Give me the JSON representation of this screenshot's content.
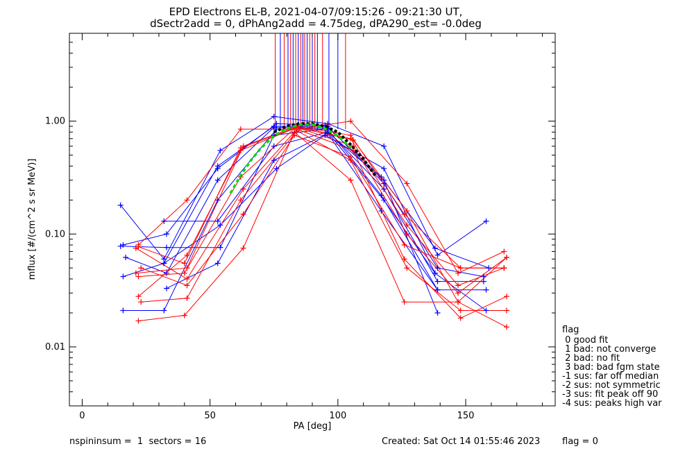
{
  "title_lines": [
    "EPD Electrons EL-B, 2021-04-07/09:15:26 - 09:21:30 UT,",
    "dSectr2add = 0, dPhAng2add = 4.75deg, dPA290_est=  -0.0deg"
  ],
  "chart_data": {
    "type": "line",
    "xlabel": "PA [deg]",
    "ylabel": "mflux [#/(cm^2 s sr MeV)]",
    "xlim": [
      -5,
      185
    ],
    "ylim": [
      0.003,
      6.0
    ],
    "yscale": "log",
    "xticks": [
      0,
      50,
      100,
      150
    ],
    "xtick_labels": [
      "0",
      "50",
      "100",
      "150"
    ],
    "yticks": [
      0.01,
      0.1,
      1.0
    ],
    "ytick_labels": [
      "0.01",
      "0.10",
      "1.00"
    ],
    "grid": false,
    "colors": {
      "red": "#ff0000",
      "blue": "#0000ff",
      "fit_black": "#000000",
      "fit_green": "#00dd00"
    },
    "peak_marker_pa": [
      {
        "pa": 75.5,
        "color": "red"
      },
      {
        "pa": 77.5,
        "color": "blue"
      },
      {
        "pa": 79.0,
        "color": "red"
      },
      {
        "pa": 80.5,
        "color": "blue"
      },
      {
        "pa": 81.5,
        "color": "red"
      },
      {
        "pa": 82.5,
        "color": "blue"
      },
      {
        "pa": 83.5,
        "color": "red"
      },
      {
        "pa": 84.5,
        "color": "blue"
      },
      {
        "pa": 85.5,
        "color": "red"
      },
      {
        "pa": 86.3,
        "color": "blue"
      },
      {
        "pa": 87.0,
        "color": "red"
      },
      {
        "pa": 88.0,
        "color": "blue"
      },
      {
        "pa": 89.0,
        "color": "red"
      },
      {
        "pa": 90.0,
        "color": "blue"
      },
      {
        "pa": 91.0,
        "color": "red"
      },
      {
        "pa": 92.0,
        "color": "blue"
      },
      {
        "pa": 94.0,
        "color": "red"
      },
      {
        "pa": 96.5,
        "color": "blue"
      },
      {
        "pa": 100.0,
        "color": "blue"
      },
      {
        "pa": 103.0,
        "color": "red"
      }
    ],
    "fit_green": {
      "x": [
        58,
        62,
        66,
        70,
        75,
        80,
        85,
        90,
        95,
        100,
        105
      ],
      "y": [
        0.23,
        0.33,
        0.45,
        0.58,
        0.74,
        0.86,
        0.93,
        0.93,
        0.86,
        0.74,
        0.58
      ]
    },
    "fit_black": {
      "x": [
        75,
        80,
        85,
        90,
        95,
        100,
        105,
        110,
        115
      ],
      "y": [
        0.8,
        0.9,
        0.95,
        0.95,
        0.9,
        0.8,
        0.62,
        0.46,
        0.32
      ]
    },
    "series": [
      {
        "color": "blue",
        "x": [
          15,
          32,
          54,
          75,
          96,
          118,
          139,
          158
        ],
        "y": [
          0.18,
          0.06,
          0.55,
          1.1,
          0.95,
          0.6,
          0.065,
          0.13
        ]
      },
      {
        "color": "blue",
        "x": [
          16,
          33,
          53,
          76,
          95,
          117,
          138,
          159
        ],
        "y": [
          0.08,
          0.1,
          0.38,
          0.95,
          0.92,
          0.32,
          0.075,
          0.05
        ]
      },
      {
        "color": "blue",
        "x": [
          16,
          32,
          53,
          75,
          96,
          118,
          139,
          157
        ],
        "y": [
          0.042,
          0.055,
          0.4,
          0.9,
          0.9,
          0.28,
          0.05,
          0.042
        ]
      },
      {
        "color": "blue",
        "x": [
          17,
          33,
          53,
          75,
          95,
          118,
          139,
          157
        ],
        "y": [
          0.062,
          0.045,
          0.3,
          0.88,
          0.87,
          0.25,
          0.038,
          0.038
        ]
      },
      {
        "color": "blue",
        "x": [
          16,
          32,
          53,
          76,
          96,
          117,
          139,
          158
        ],
        "y": [
          0.021,
          0.021,
          0.2,
          0.85,
          0.85,
          0.22,
          0.032,
          0.032
        ]
      },
      {
        "color": "blue",
        "x": [
          15,
          33,
          54,
          75,
          95,
          118,
          138,
          158
        ],
        "y": [
          0.078,
          0.076,
          0.076,
          0.75,
          0.85,
          0.2,
          0.045,
          0.021
        ]
      },
      {
        "color": "blue",
        "x": [
          32,
          53,
          75,
          96,
          118,
          139
        ],
        "y": [
          0.13,
          0.13,
          0.6,
          0.8,
          0.3,
          0.02
        ]
      },
      {
        "color": "blue",
        "x": [
          33,
          53,
          75,
          96,
          117,
          139
        ],
        "y": [
          0.033,
          0.055,
          0.45,
          0.78,
          0.16,
          0.032
        ]
      },
      {
        "color": "blue",
        "x": [
          32,
          54,
          76,
          95,
          118,
          138
        ],
        "y": [
          0.055,
          0.12,
          0.38,
          0.75,
          0.38,
          0.045
        ]
      },
      {
        "color": "red",
        "x": [
          22,
          41,
          62,
          84,
          105,
          127,
          147,
          165
        ],
        "y": [
          0.08,
          0.2,
          0.85,
          0.85,
          1.0,
          0.28,
          0.045,
          0.07
        ]
      },
      {
        "color": "red",
        "x": [
          21,
          41,
          63,
          84,
          105,
          126,
          148,
          165
        ],
        "y": [
          0.045,
          0.05,
          0.6,
          0.9,
          0.75,
          0.15,
          0.05,
          0.05
        ]
      },
      {
        "color": "red",
        "x": [
          22,
          41,
          62,
          84,
          106,
          127,
          147,
          166
        ],
        "y": [
          0.028,
          0.065,
          0.55,
          0.88,
          0.6,
          0.1,
          0.03,
          0.062
        ]
      },
      {
        "color": "red",
        "x": [
          22,
          40,
          63,
          83,
          105,
          126,
          147,
          166
        ],
        "y": [
          0.017,
          0.019,
          0.075,
          0.8,
          0.3,
          0.025,
          0.025,
          0.015
        ]
      },
      {
        "color": "red",
        "x": [
          23,
          41,
          62,
          84,
          105,
          127,
          148,
          166
        ],
        "y": [
          0.025,
          0.027,
          0.2,
          0.82,
          0.45,
          0.05,
          0.021,
          0.021
        ]
      },
      {
        "color": "red",
        "x": [
          21,
          41,
          63,
          84,
          106,
          126,
          148,
          166
        ],
        "y": [
          0.075,
          0.04,
          0.25,
          0.85,
          0.55,
          0.06,
          0.018,
          0.028
        ]
      },
      {
        "color": "red",
        "x": [
          22,
          40,
          62,
          84,
          105,
          127,
          147,
          165
        ],
        "y": [
          0.042,
          0.045,
          0.32,
          0.9,
          0.7,
          0.12,
          0.035,
          0.05
        ]
      },
      {
        "color": "red",
        "x": [
          23,
          41,
          63,
          83,
          105,
          126,
          148,
          165
        ],
        "y": [
          0.05,
          0.035,
          0.15,
          0.75,
          0.48,
          0.08,
          0.05,
          0.05
        ]
      },
      {
        "color": "red",
        "x": [
          22,
          40,
          62,
          84,
          106,
          127,
          147,
          166
        ],
        "y": [
          0.077,
          0.055,
          0.58,
          0.88,
          0.68,
          0.16,
          0.025,
          0.062
        ]
      }
    ]
  },
  "legend": {
    "title": "flag",
    "items": [
      " 0 good fit",
      " 1 bad: not converge",
      " 2 bad: no fit",
      " 3 bad: bad fgm state",
      "-1 sus: far off median",
      "-2 sus: not symmetric",
      "-3 sus: fit peak off 90",
      "-4 sus: peaks high var"
    ]
  },
  "footer": {
    "left": "nspininsum =  1  sectors = 16",
    "created": "Created: Sat Oct 14 01:55:46 2023",
    "flag": "flag = 0"
  }
}
